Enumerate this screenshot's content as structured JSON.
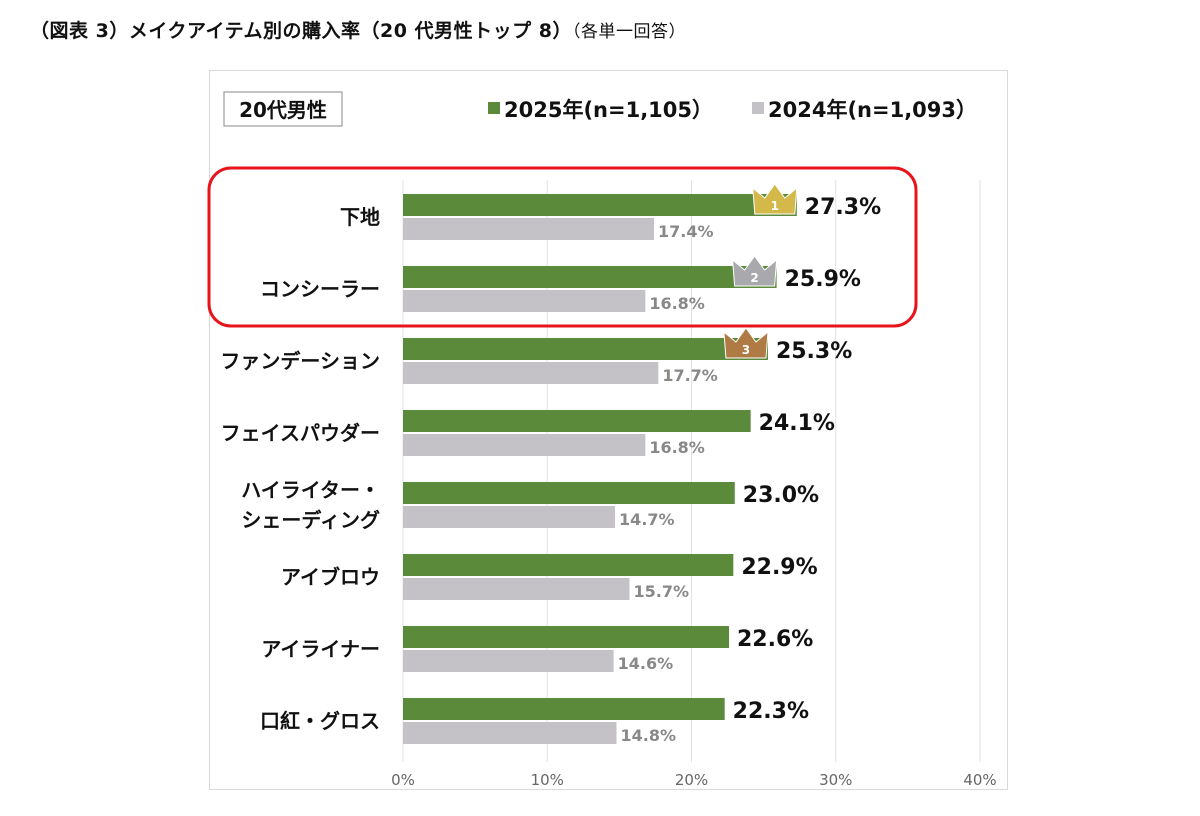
{
  "title": {
    "main": "（図表 3）メイクアイテム別の購入率（20 代男性トップ 8）",
    "sub": "（各単一回答）"
  },
  "chart_data": {
    "type": "bar",
    "orientation": "horizontal",
    "group_label": "20代男性",
    "categories": [
      "下地",
      "コンシーラー",
      "ファンデーション",
      "フェイスパウダー",
      "ハイライター・\nシェーディング",
      "アイブロウ",
      "アイライナー",
      "口紅・グロス"
    ],
    "series": [
      {
        "name": "2025年(n=1,105）",
        "color": "#5b8a3a",
        "values": [
          27.3,
          25.9,
          25.3,
          24.1,
          23.0,
          22.9,
          22.6,
          22.3
        ]
      },
      {
        "name": "2024年(n=1,093）",
        "color": "#c4c2c7",
        "values": [
          17.4,
          16.8,
          17.7,
          16.8,
          14.7,
          15.7,
          14.6,
          14.8
        ]
      }
    ],
    "xlim": [
      0,
      40
    ],
    "ticks": [
      "0%",
      "10%",
      "20%",
      "30%",
      "40%"
    ],
    "grid": true,
    "legend": "top-right",
    "rank_crowns": [
      "1",
      "2",
      "3"
    ],
    "highlight": {
      "categories": [
        "下地",
        "コンシーラー"
      ],
      "color": "#e8141c"
    }
  }
}
